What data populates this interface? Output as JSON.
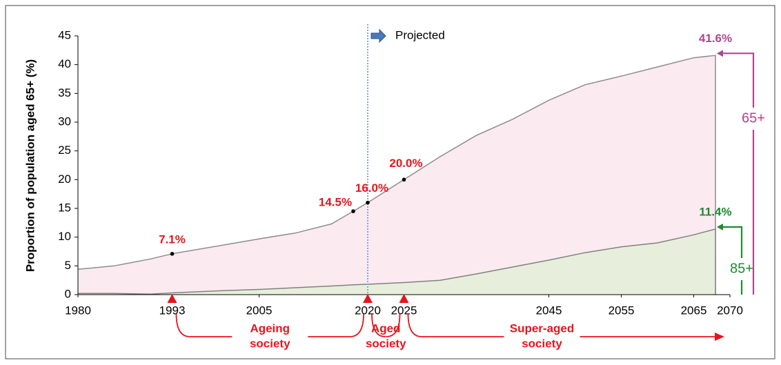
{
  "chart_data": {
    "type": "area",
    "y_label": "Proportion of population aged 65+ (%)",
    "x": [
      1980,
      1985,
      1990,
      1993,
      2000,
      2005,
      2010,
      2015,
      2018,
      2020,
      2025,
      2030,
      2035,
      2040,
      2045,
      2050,
      2055,
      2060,
      2065,
      2068
    ],
    "series": [
      {
        "name": "65+",
        "color": "#b0458f",
        "fill": "#fbeaf0",
        "line": "#8c8c8c",
        "values": [
          4.4,
          5.0,
          6.2,
          7.1,
          8.6,
          9.7,
          10.7,
          12.3,
          14.5,
          16.0,
          20.0,
          24.0,
          27.7,
          30.5,
          33.8,
          36.5,
          38.0,
          39.6,
          41.2,
          41.6
        ],
        "value_labels": [
          null,
          null,
          null,
          "7.1%",
          null,
          null,
          null,
          null,
          "14.5%",
          "16.0%",
          "20.0%",
          null,
          null,
          null,
          null,
          null,
          null,
          null,
          null,
          "41.6%"
        ]
      },
      {
        "name": "85+",
        "color": "#1e8a30",
        "fill": "#e7efdc",
        "line": "#808080",
        "values": [
          0.2,
          0.2,
          0.1,
          0.3,
          0.7,
          0.9,
          1.2,
          1.5,
          1.7,
          1.8,
          2.1,
          2.5,
          3.6,
          4.8,
          6.0,
          7.3,
          8.3,
          9.0,
          10.4,
          11.4
        ],
        "value_labels": [
          null,
          null,
          null,
          null,
          null,
          null,
          null,
          null,
          null,
          null,
          null,
          null,
          null,
          null,
          null,
          null,
          null,
          null,
          null,
          "11.4%"
        ]
      }
    ],
    "label_color": "#e8141b",
    "xlim": [
      1980,
      2070
    ],
    "xticks": [
      1980,
      1993,
      2005,
      2020,
      2025,
      2045,
      2055,
      2065,
      2070
    ],
    "ylim": [
      0,
      45
    ],
    "yticks": [
      0,
      5,
      10,
      15,
      20,
      25,
      30,
      35,
      40,
      45
    ],
    "projection": {
      "x": 2020,
      "label": "Projected"
    },
    "stages": [
      {
        "label": [
          "Ageing",
          "society"
        ],
        "start": 1993,
        "end": 2020
      },
      {
        "label": [
          "Aged",
          "society"
        ],
        "start": 2020,
        "end": 2025
      },
      {
        "label": [
          "Super-aged",
          "society"
        ],
        "start": 2025,
        "end": 2070
      }
    ]
  }
}
